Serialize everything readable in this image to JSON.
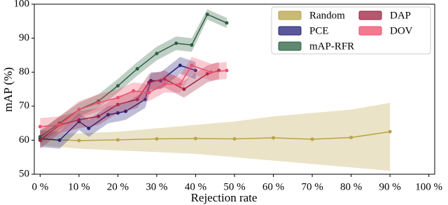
{
  "chart_data": {
    "type": "line",
    "xlabel": "Rejection rate",
    "ylabel": "mAP (%)",
    "xlim": [
      -1.5,
      101.5
    ],
    "ylim": [
      50,
      100
    ],
    "xticks": [
      {
        "value": 0,
        "label": "0 %"
      },
      {
        "value": 10,
        "label": "10 %"
      },
      {
        "value": 20,
        "label": "20 %"
      },
      {
        "value": 30,
        "label": "30 %"
      },
      {
        "value": 40,
        "label": "40 %"
      },
      {
        "value": 50,
        "label": "50 %"
      },
      {
        "value": 60,
        "label": "60 %"
      },
      {
        "value": 70,
        "label": "70 %"
      },
      {
        "value": 80,
        "label": "80 %"
      },
      {
        "value": 90,
        "label": "90 %"
      },
      {
        "value": 100,
        "label": "100 %"
      }
    ],
    "yticks": [
      50,
      60,
      70,
      80,
      90,
      100
    ],
    "grid": false,
    "legend": "upper right",
    "series": [
      {
        "name": "Random",
        "color": "#b8a347",
        "x": [
          0,
          10,
          20,
          30,
          40,
          50,
          60,
          70,
          80,
          90
        ],
        "values": [
          60.3,
          59.9,
          60.1,
          60.4,
          60.5,
          60.4,
          60.7,
          60.3,
          60.8,
          62.5
        ],
        "lower": [
          58.5,
          57.5,
          57,
          56.5,
          56,
          55,
          54,
          53,
          52,
          51
        ],
        "upper": [
          62,
          62,
          62.5,
          63.5,
          64.5,
          65.5,
          67,
          68,
          69,
          71
        ]
      },
      {
        "name": "PCE",
        "color": "#27207a",
        "x": [
          0,
          5,
          10,
          12.5,
          17.5,
          20,
          22,
          27,
          28.5,
          31,
          36,
          40
        ],
        "values": [
          60.5,
          60,
          65.5,
          63.5,
          67.5,
          68,
          68.5,
          72,
          77.5,
          77.5,
          82,
          80.5
        ],
        "lower": [
          58,
          57.5,
          63,
          61,
          65,
          65.5,
          66,
          69.5,
          75,
          75,
          79.5,
          78
        ],
        "upper": [
          63,
          62.5,
          68,
          66,
          70,
          70.5,
          71,
          74.5,
          80,
          80,
          84.5,
          83
        ]
      },
      {
        "name": "mAP-RFR",
        "color": "#2a6140",
        "x": [
          0,
          5,
          10,
          15,
          20,
          25,
          30,
          35,
          39,
          43,
          48
        ],
        "values": [
          61,
          65,
          69,
          71.5,
          76,
          81,
          85.5,
          88.5,
          88,
          97,
          94.5
        ],
        "lower": [
          59,
          63,
          67,
          69.5,
          74,
          79,
          83.5,
          86.5,
          86,
          95.5,
          93
        ],
        "upper": [
          63,
          67,
          71,
          73.5,
          78,
          83,
          87.5,
          90.5,
          90,
          98.5,
          96
        ]
      },
      {
        "name": "DAP",
        "color": "#9c2240",
        "x": [
          0,
          5,
          10,
          15,
          20,
          25,
          28,
          32,
          37,
          43,
          46
        ],
        "values": [
          60,
          64.5,
          66,
          67,
          70.5,
          72,
          77,
          78,
          75,
          79.5,
          80.5
        ],
        "lower": [
          57.5,
          62,
          63.5,
          64.5,
          68,
          69.5,
          74.5,
          75.5,
          72.5,
          77,
          78
        ],
        "upper": [
          62.5,
          67,
          68.5,
          69.5,
          73,
          74.5,
          79.5,
          80.5,
          77.5,
          82,
          83
        ]
      },
      {
        "name": "DOV",
        "color": "#f04e6b",
        "x": [
          0,
          5,
          10,
          15,
          20,
          24,
          28,
          32,
          36,
          39,
          44,
          48
        ],
        "values": [
          64,
          64.5,
          69,
          71,
          72.5,
          74.5,
          74,
          76.5,
          76.5,
          82,
          80,
          80.5
        ],
        "lower": [
          61.5,
          62,
          66.5,
          68.5,
          70,
          72,
          71.5,
          74,
          74,
          79.5,
          77.5,
          78
        ],
        "upper": [
          66.5,
          67,
          71.5,
          73.5,
          75,
          77,
          76.5,
          79,
          79,
          84.5,
          82.5,
          83
        ]
      }
    ]
  }
}
